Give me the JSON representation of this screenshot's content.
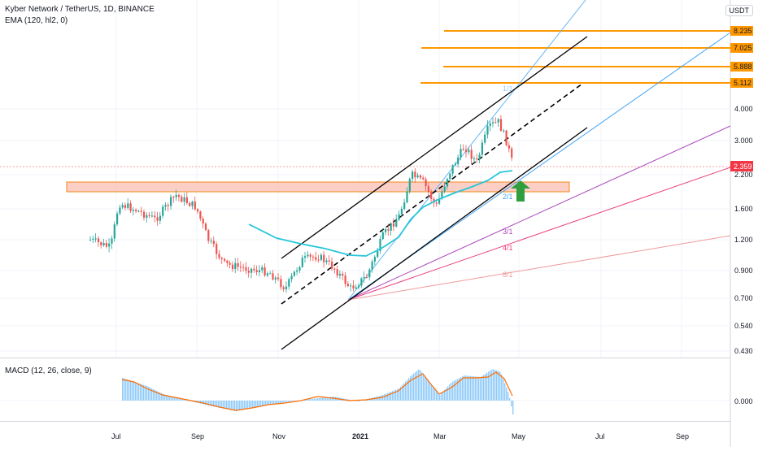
{
  "legend": {
    "symbol": "Kyber Network / TetherUS, 1D, BINANCE",
    "ema": "EMA (120, hl2, 0)",
    "macd": "MACD (12, 26, close, 9)"
  },
  "currency": "USDT",
  "price_axis_labels": [
    "4.000",
    "3.000",
    "2.200",
    "1.600",
    "1.200",
    "0.900",
    "0.700",
    "0.540",
    "0.430"
  ],
  "price_tags": {
    "levels": [
      "8.235",
      "7.025",
      "5.888",
      "5.112"
    ],
    "last": "2.359"
  },
  "macd_axis_label": "0.000",
  "fan_labels": [
    "1/1",
    "2/1",
    "3/1",
    "4/1",
    "8/1"
  ],
  "time_labels": [
    "Jul",
    "Sep",
    "Nov",
    "2021",
    "Mar",
    "May",
    "Jul",
    "Sep"
  ],
  "colors": {
    "up": "#26a69a",
    "down": "#ef5350",
    "ema": "#26c6da",
    "level": "#ff9800",
    "support_fill": "#fbc9c0",
    "support_stroke": "#f57c00",
    "macd": "#2196f3",
    "signal": "#ff6d00",
    "hist": "#90caf9",
    "arrow": "#2e9e3e",
    "fan1": "#42a5f5",
    "fan3": "#ab47bc",
    "fan4": "#ec407a",
    "fan8": "#ef9a9a",
    "last_tag": "#f23645"
  }
}
